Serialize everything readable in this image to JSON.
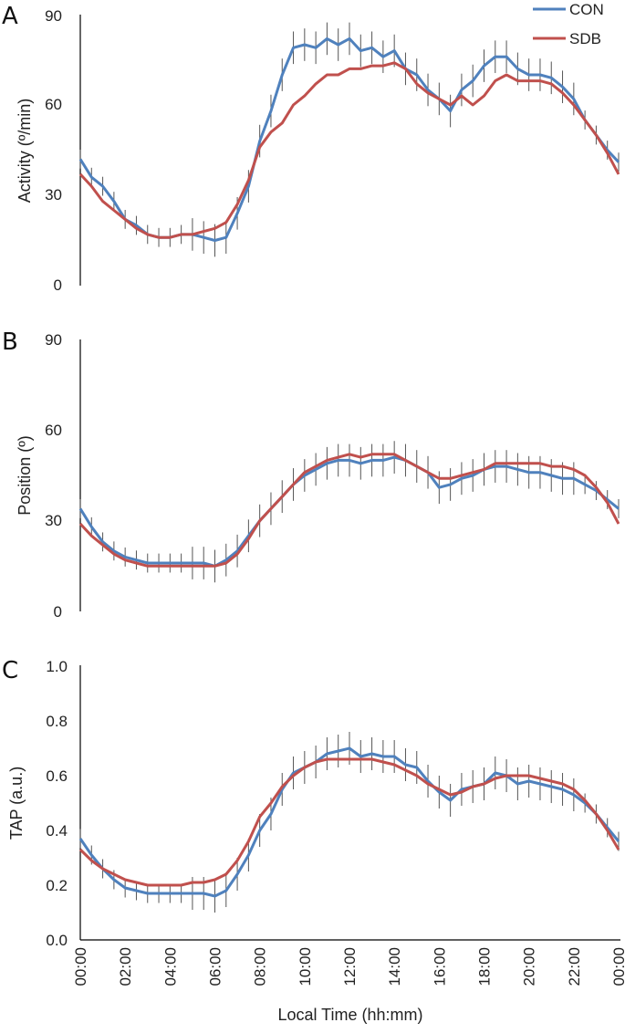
{
  "colors": {
    "CON": "#4f81bd",
    "SDB": "#c0504d",
    "error": "#555555"
  },
  "legend": [
    {
      "name": "CON",
      "color": "#4f81bd"
    },
    {
      "name": "SDB",
      "color": "#c0504d"
    }
  ],
  "x_axis": {
    "label": "Local Time (hh:mm)",
    "ticks": [
      "00:00",
      "02:00",
      "04:00",
      "06:00",
      "08:00",
      "10:00",
      "12:00",
      "14:00",
      "16:00",
      "18:00",
      "20:00",
      "22:00",
      "00:00"
    ],
    "range": [
      0,
      24
    ]
  },
  "chart_data": [
    {
      "type": "line",
      "panel": "A",
      "ylabel": "Activity (º/min)",
      "ylim": [
        0,
        90
      ],
      "yticks": [
        "0",
        "30",
        "60",
        "90"
      ],
      "x": [
        0,
        0.5,
        1,
        1.5,
        2,
        2.5,
        3,
        3.5,
        4,
        4.5,
        5,
        5.5,
        6,
        6.5,
        7,
        7.5,
        8,
        8.5,
        9,
        9.5,
        10,
        10.5,
        11,
        11.5,
        12,
        12.5,
        13,
        13.5,
        14,
        14.5,
        15,
        15.5,
        16,
        16.5,
        17,
        17.5,
        18,
        18.5,
        19,
        19.5,
        20,
        20.5,
        21,
        21.5,
        22,
        22.5,
        23,
        23.5,
        24
      ],
      "series": [
        {
          "name": "CON",
          "values": [
            42,
            36,
            33,
            28,
            22,
            20,
            17,
            16,
            16,
            17,
            17,
            16,
            15,
            16,
            24,
            33,
            48,
            58,
            70,
            79,
            80,
            79,
            82,
            80,
            82,
            78,
            79,
            76,
            78,
            72,
            70,
            65,
            62,
            58,
            65,
            68,
            73,
            76,
            76,
            72,
            70,
            70,
            69,
            66,
            62,
            55,
            50,
            45,
            41
          ]
        },
        {
          "name": "SDB",
          "values": [
            37,
            33,
            28,
            25,
            22,
            19,
            17,
            16,
            16,
            17,
            17,
            18,
            19,
            21,
            27,
            35,
            46,
            51,
            54,
            60,
            63,
            67,
            70,
            70,
            72,
            72,
            73,
            73,
            74,
            72,
            67,
            64,
            62,
            60,
            63,
            60,
            63,
            68,
            70,
            68,
            68,
            68,
            67,
            64,
            60,
            55,
            50,
            44,
            37
          ]
        }
      ]
    },
    {
      "type": "line",
      "panel": "B",
      "ylabel": "Position (º)",
      "ylim": [
        0,
        90
      ],
      "yticks": [
        "0",
        "30",
        "60",
        "90"
      ],
      "x": [
        0,
        0.5,
        1,
        1.5,
        2,
        2.5,
        3,
        3.5,
        4,
        4.5,
        5,
        5.5,
        6,
        6.5,
        7,
        7.5,
        8,
        8.5,
        9,
        9.5,
        10,
        10.5,
        11,
        11.5,
        12,
        12.5,
        13,
        13.5,
        14,
        14.5,
        15,
        15.5,
        16,
        16.5,
        17,
        17.5,
        18,
        18.5,
        19,
        19.5,
        20,
        20.5,
        21,
        21.5,
        22,
        22.5,
        23,
        23.5,
        24
      ],
      "series": [
        {
          "name": "CON",
          "values": [
            34,
            28,
            23,
            20,
            18,
            17,
            16,
            16,
            16,
            16,
            16,
            16,
            15,
            17,
            20,
            25,
            30,
            34,
            38,
            42,
            45,
            47,
            49,
            50,
            50,
            49,
            50,
            50,
            51,
            50,
            48,
            46,
            41,
            42,
            44,
            45,
            47,
            48,
            48,
            47,
            46,
            46,
            45,
            44,
            44,
            42,
            40,
            37,
            34
          ]
        },
        {
          "name": "SDB",
          "values": [
            29,
            25,
            22,
            19,
            17,
            16,
            15,
            15,
            15,
            15,
            15,
            15,
            15,
            16,
            19,
            24,
            30,
            34,
            38,
            42,
            46,
            48,
            50,
            51,
            52,
            51,
            52,
            52,
            52,
            50,
            48,
            46,
            44,
            44,
            45,
            46,
            47,
            49,
            49,
            49,
            49,
            49,
            48,
            48,
            47,
            45,
            41,
            36,
            29
          ]
        }
      ]
    },
    {
      "type": "line",
      "panel": "C",
      "ylabel": "TAP (a.u.)",
      "ylim": [
        0,
        1.0
      ],
      "yticks": [
        "0.0",
        "0.2",
        "0.4",
        "0.6",
        "0.8",
        "1.0"
      ],
      "x": [
        0,
        0.5,
        1,
        1.5,
        2,
        2.5,
        3,
        3.5,
        4,
        4.5,
        5,
        5.5,
        6,
        6.5,
        7,
        7.5,
        8,
        8.5,
        9,
        9.5,
        10,
        10.5,
        11,
        11.5,
        12,
        12.5,
        13,
        13.5,
        14,
        14.5,
        15,
        15.5,
        16,
        16.5,
        17,
        17.5,
        18,
        18.5,
        19,
        19.5,
        20,
        20.5,
        21,
        21.5,
        22,
        22.5,
        23,
        23.5,
        24
      ],
      "series": [
        {
          "name": "CON",
          "values": [
            0.37,
            0.31,
            0.26,
            0.22,
            0.19,
            0.18,
            0.17,
            0.17,
            0.17,
            0.17,
            0.17,
            0.17,
            0.16,
            0.18,
            0.24,
            0.31,
            0.4,
            0.46,
            0.55,
            0.61,
            0.63,
            0.65,
            0.68,
            0.69,
            0.7,
            0.67,
            0.68,
            0.67,
            0.67,
            0.64,
            0.63,
            0.58,
            0.54,
            0.51,
            0.55,
            0.56,
            0.57,
            0.61,
            0.6,
            0.57,
            0.58,
            0.57,
            0.56,
            0.55,
            0.53,
            0.5,
            0.46,
            0.41,
            0.36
          ]
        },
        {
          "name": "SDB",
          "values": [
            0.33,
            0.29,
            0.26,
            0.24,
            0.22,
            0.21,
            0.2,
            0.2,
            0.2,
            0.2,
            0.21,
            0.21,
            0.22,
            0.24,
            0.29,
            0.36,
            0.45,
            0.5,
            0.56,
            0.6,
            0.63,
            0.65,
            0.66,
            0.66,
            0.66,
            0.66,
            0.66,
            0.65,
            0.64,
            0.62,
            0.6,
            0.57,
            0.55,
            0.53,
            0.54,
            0.56,
            0.57,
            0.59,
            0.6,
            0.6,
            0.6,
            0.59,
            0.58,
            0.57,
            0.55,
            0.51,
            0.46,
            0.4,
            0.33
          ]
        }
      ]
    }
  ]
}
